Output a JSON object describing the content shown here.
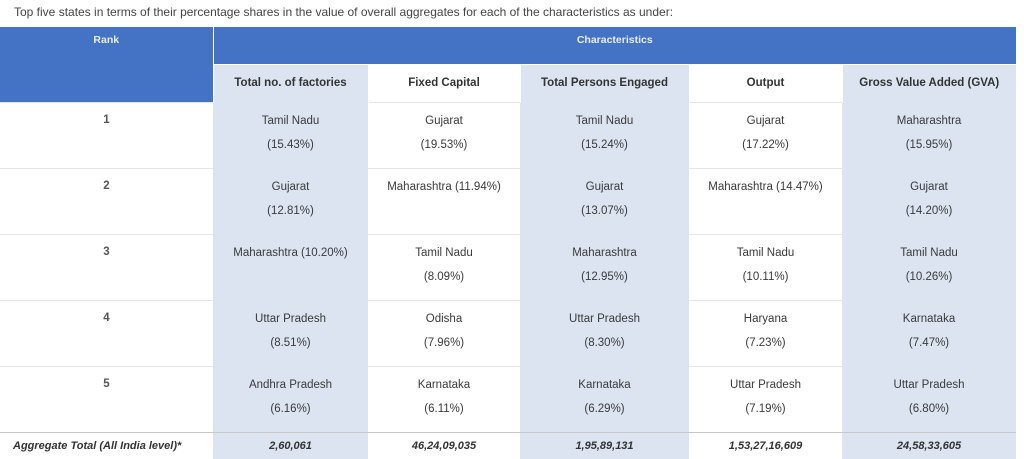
{
  "intro": "Top five states in terms of their percentage shares in the value of overall aggregates for each of the characteristics as under:",
  "headers": {
    "rank": "Rank",
    "characteristics": "Characteristics",
    "columns": [
      "Total no. of factories",
      "Fixed Capital",
      "Total Persons Engaged",
      "Output",
      "Gross Value Added (GVA)"
    ]
  },
  "rows": [
    {
      "rank": "1",
      "cells": [
        {
          "state": "Tamil Nadu",
          "pct": "(15.43%)"
        },
        {
          "state": "Gujarat",
          "pct": "(19.53%)"
        },
        {
          "state": "Tamil Nadu",
          "pct": "(15.24%)"
        },
        {
          "state": "Gujarat",
          "pct": "(17.22%)"
        },
        {
          "state": "Maharashtra",
          "pct": "(15.95%)"
        }
      ]
    },
    {
      "rank": "2",
      "cells": [
        {
          "state": "Gujarat",
          "pct": "(12.81%)"
        },
        {
          "state": "Maharashtra",
          "pct": "(11.94%)"
        },
        {
          "state": "Gujarat",
          "pct": "(13.07%)"
        },
        {
          "state": "Maharashtra",
          "pct": "(14.47%)"
        },
        {
          "state": "Gujarat",
          "pct": "(14.20%)"
        }
      ]
    },
    {
      "rank": "3",
      "cells": [
        {
          "state": "Maharashtra",
          "pct": "(10.20%)"
        },
        {
          "state": "Tamil Nadu",
          "pct": "(8.09%)"
        },
        {
          "state": "Maharashtra",
          "pct": "(12.95%)"
        },
        {
          "state": "Tamil Nadu",
          "pct": "(10.11%)"
        },
        {
          "state": "Tamil Nadu",
          "pct": "(10.26%)"
        }
      ]
    },
    {
      "rank": "4",
      "cells": [
        {
          "state": "Uttar Pradesh",
          "pct": "(8.51%)"
        },
        {
          "state": "Odisha",
          "pct": "(7.96%)"
        },
        {
          "state": "Uttar Pradesh",
          "pct": "(8.30%)"
        },
        {
          "state": "Haryana",
          "pct": "(7.23%)"
        },
        {
          "state": "Karnataka",
          "pct": "(7.47%)"
        }
      ]
    },
    {
      "rank": "5",
      "cells": [
        {
          "state": "Andhra Pradesh",
          "pct": "(6.16%)"
        },
        {
          "state": "Karnataka",
          "pct": "(6.11%)"
        },
        {
          "state": "Karnataka",
          "pct": "(6.29%)"
        },
        {
          "state": "Uttar Pradesh",
          "pct": "(7.19%)"
        },
        {
          "state": "Uttar Pradesh",
          "pct": "(6.80%)"
        }
      ]
    }
  ],
  "total": {
    "label": "Aggregate Total (All India level)*",
    "values": [
      "2,60,061",
      "46,24,09,035",
      "1,95,89,131",
      "1,53,27,16,609",
      "24,58,33,605"
    ]
  },
  "colors": {
    "header_blue": "#4472c4",
    "shade": "#dbe4f0"
  }
}
